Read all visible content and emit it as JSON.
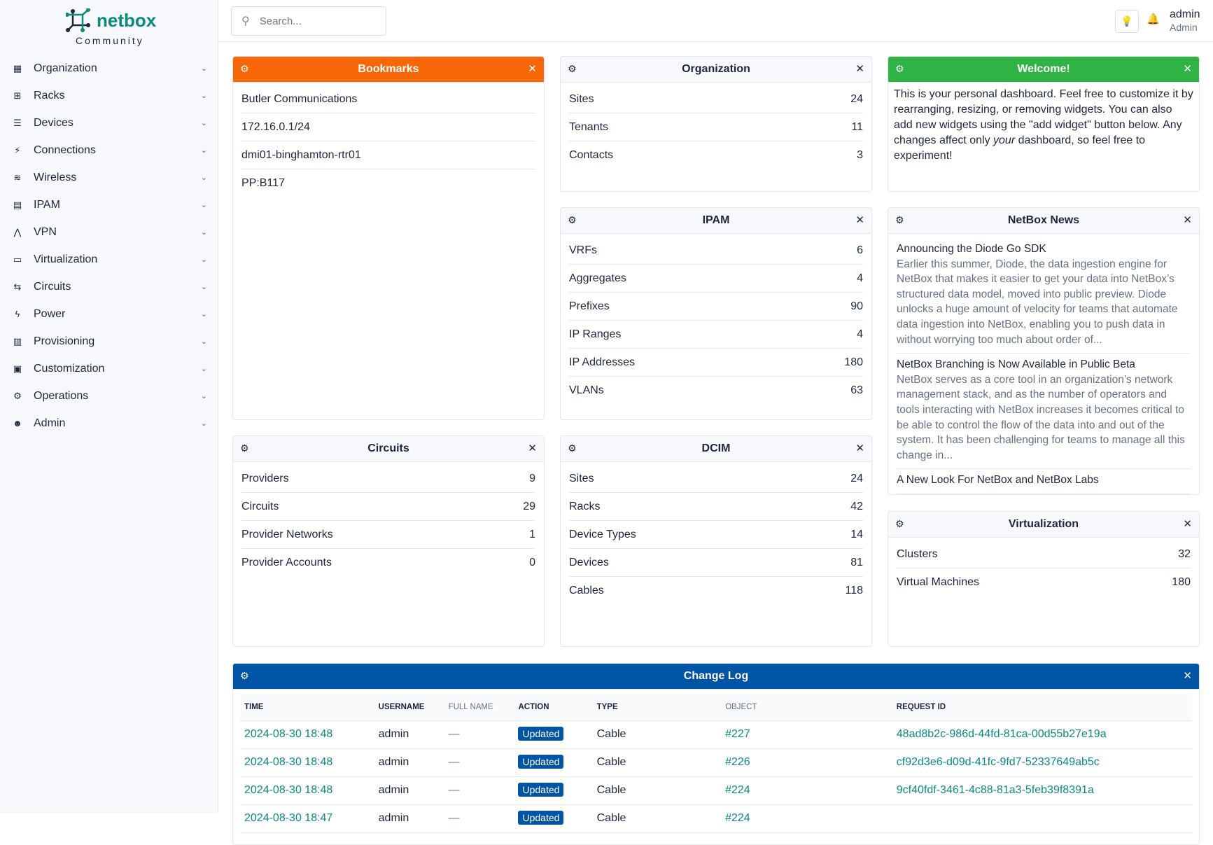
{
  "brand": {
    "name": "netbox",
    "edition": "Community",
    "color": "#0b8a7d"
  },
  "sidebar": {
    "items": [
      {
        "label": "Organization",
        "icon": "building-icon"
      },
      {
        "label": "Racks",
        "icon": "rack-icon"
      },
      {
        "label": "Devices",
        "icon": "server-icon"
      },
      {
        "label": "Connections",
        "icon": "plug-icon"
      },
      {
        "label": "Wireless",
        "icon": "wifi-icon"
      },
      {
        "label": "IPAM",
        "icon": "ip-icon"
      },
      {
        "label": "VPN",
        "icon": "vpn-icon"
      },
      {
        "label": "Virtualization",
        "icon": "monitor-icon"
      },
      {
        "label": "Circuits",
        "icon": "circuit-icon"
      },
      {
        "label": "Power",
        "icon": "bolt-icon"
      },
      {
        "label": "Provisioning",
        "icon": "file-icon"
      },
      {
        "label": "Customization",
        "icon": "toolbox-icon"
      },
      {
        "label": "Operations",
        "icon": "cogs-icon"
      },
      {
        "label": "Admin",
        "icon": "users-icon"
      }
    ]
  },
  "header": {
    "search_placeholder": "Search...",
    "user": {
      "name": "admin",
      "role": "Admin"
    }
  },
  "widgets": {
    "bookmarks": {
      "title": "Bookmarks",
      "color": "#f76707",
      "items": [
        "Butler Communications",
        "172.16.0.1/24",
        "dmi01-binghamton-rtr01",
        "PP:B117"
      ]
    },
    "organization": {
      "title": "Organization",
      "rows": [
        {
          "label": "Sites",
          "value": "24"
        },
        {
          "label": "Tenants",
          "value": "11"
        },
        {
          "label": "Contacts",
          "value": "3"
        }
      ]
    },
    "welcome": {
      "title": "Welcome!",
      "color": "#2fb344",
      "text_before": "This is your personal dashboard. Feel free to customize it by rearranging, resizing, or removing widgets. You can also add new widgets using the \"add widget\" button below. Any changes affect only ",
      "text_em": "your",
      "text_after": " dashboard, so feel free to experiment!"
    },
    "ipam": {
      "title": "IPAM",
      "rows": [
        {
          "label": "VRFs",
          "value": "6"
        },
        {
          "label": "Aggregates",
          "value": "4"
        },
        {
          "label": "Prefixes",
          "value": "90"
        },
        {
          "label": "IP Ranges",
          "value": "4"
        },
        {
          "label": "IP Addresses",
          "value": "180"
        },
        {
          "label": "VLANs",
          "value": "63"
        }
      ]
    },
    "news": {
      "title": "NetBox News",
      "items": [
        {
          "title": "Announcing the Diode Go SDK",
          "desc": "Earlier this summer, Diode, the data ingestion engine for NetBox that makes it easier to get your data into NetBox’s structured data model, moved into public preview. Diode unlocks a huge amount of velocity for teams that automate data ingestion into NetBox, enabling you to push data in without worrying too much about order of..."
        },
        {
          "title": "NetBox Branching is Now Available in Public Beta",
          "desc": "NetBox serves as a core tool in an organization’s network management stack, and as the number of operators and tools interacting with NetBox increases it becomes critical to be able to control the flow of the data into and out of the system. It has been challenging for teams to manage all this change in..."
        },
        {
          "title": "A New Look For NetBox and NetBox Labs",
          "desc": ""
        }
      ]
    },
    "circuits": {
      "title": "Circuits",
      "rows": [
        {
          "label": "Providers",
          "value": "9"
        },
        {
          "label": "Circuits",
          "value": "29"
        },
        {
          "label": "Provider Networks",
          "value": "1"
        },
        {
          "label": "Provider Accounts",
          "value": "0"
        }
      ]
    },
    "dcim": {
      "title": "DCIM",
      "rows": [
        {
          "label": "Sites",
          "value": "24"
        },
        {
          "label": "Racks",
          "value": "42"
        },
        {
          "label": "Device Types",
          "value": "14"
        },
        {
          "label": "Devices",
          "value": "81"
        },
        {
          "label": "Cables",
          "value": "118"
        }
      ]
    },
    "virtualization": {
      "title": "Virtualization",
      "rows": [
        {
          "label": "Clusters",
          "value": "32"
        },
        {
          "label": "Virtual Machines",
          "value": "180"
        }
      ]
    },
    "changelog": {
      "title": "Change Log",
      "color": "#0054a6",
      "columns": [
        "TIME",
        "USERNAME",
        "FULL NAME",
        "ACTION",
        "TYPE",
        "OBJECT",
        "REQUEST ID"
      ],
      "rows": [
        {
          "time": "2024-08-30 18:48",
          "username": "admin",
          "full_name": "—",
          "action": "Updated",
          "type": "Cable",
          "object": "#227",
          "request_id": "48ad8b2c-986d-44fd-81ca-00d55b27e19a"
        },
        {
          "time": "2024-08-30 18:48",
          "username": "admin",
          "full_name": "—",
          "action": "Updated",
          "type": "Cable",
          "object": "#226",
          "request_id": "cf92d3e6-d09d-41fc-9fd7-52337649ab5c"
        },
        {
          "time": "2024-08-30 18:48",
          "username": "admin",
          "full_name": "—",
          "action": "Updated",
          "type": "Cable",
          "object": "#224",
          "request_id": "9cf40fdf-3461-4c88-81a3-5feb39f8391a"
        },
        {
          "time": "2024-08-30 18:47",
          "username": "admin",
          "full_name": "—",
          "action": "Updated",
          "type": "Cable",
          "object": "#224",
          "request_id": ""
        }
      ]
    }
  }
}
